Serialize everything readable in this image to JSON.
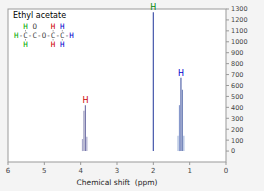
{
  "chart_data": {
    "type": "stem",
    "title": "Ethyl acetate",
    "x_label": "Chemical shift  (ppm)",
    "x": [
      3.87,
      3.91,
      3.83,
      3.95,
      2.0,
      1.24,
      1.2,
      1.28,
      1.16,
      1.32
    ],
    "values": [
      420,
      370,
      130,
      110,
      1270,
      670,
      560,
      420,
      140,
      140
    ],
    "colors": [
      "#7777aa",
      "#9999bb",
      "#aaaacc",
      "#aaaacc",
      "#4455aa",
      "#5566aa",
      "#7788bb",
      "#8899cc",
      "#aabbdd",
      "#aabbdd"
    ],
    "xlim": [
      6,
      0
    ],
    "ylim": [
      -100,
      1300
    ],
    "xticks": [
      0,
      1,
      2,
      3,
      4,
      5,
      6
    ],
    "yticks": [
      0,
      100,
      200,
      300,
      400,
      500,
      600,
      700,
      800,
      900,
      1000,
      1100,
      1200,
      1300
    ],
    "annotations": [
      {
        "text": "H",
        "x": 2.0,
        "y": 1278,
        "color": "#008800"
      },
      {
        "text": "H",
        "x": 1.24,
        "y": 678,
        "color": "#0000cc"
      },
      {
        "text": "H",
        "x": 3.87,
        "y": 428,
        "color": "#cc0000"
      }
    ],
    "structure": [
      [
        {
          "text": "H",
          "color": "#00aa00"
        },
        {
          "text": "O",
          "color": "#444444"
        },
        {
          "text": "H",
          "color": "#cc0000"
        },
        {
          "text": "H",
          "color": "#0000cc"
        }
      ],
      [
        {
          "text": "H",
          "color": "#00aa00"
        },
        {
          "text": "-",
          "color": "#444444"
        },
        {
          "text": "C",
          "color": "#444444"
        },
        {
          "text": "-",
          "color": "#444444"
        },
        {
          "text": "C",
          "color": "#444444"
        },
        {
          "text": "-",
          "color": "#444444"
        },
        {
          "text": "O",
          "color": "#444444"
        },
        {
          "text": "-",
          "color": "#444444"
        },
        {
          "text": "C",
          "color": "#444444"
        },
        {
          "text": "-",
          "color": "#444444"
        },
        {
          "text": "C",
          "color": "#444444"
        },
        {
          "text": "-",
          "color": "#444444"
        },
        {
          "text": "H",
          "color": "#0000cc"
        }
      ],
      [
        {
          "text": "H",
          "color": "#00aa00"
        },
        {
          "text": "H",
          "color": "#cc0000"
        },
        {
          "text": "H",
          "color": "#0000cc"
        }
      ]
    ]
  }
}
